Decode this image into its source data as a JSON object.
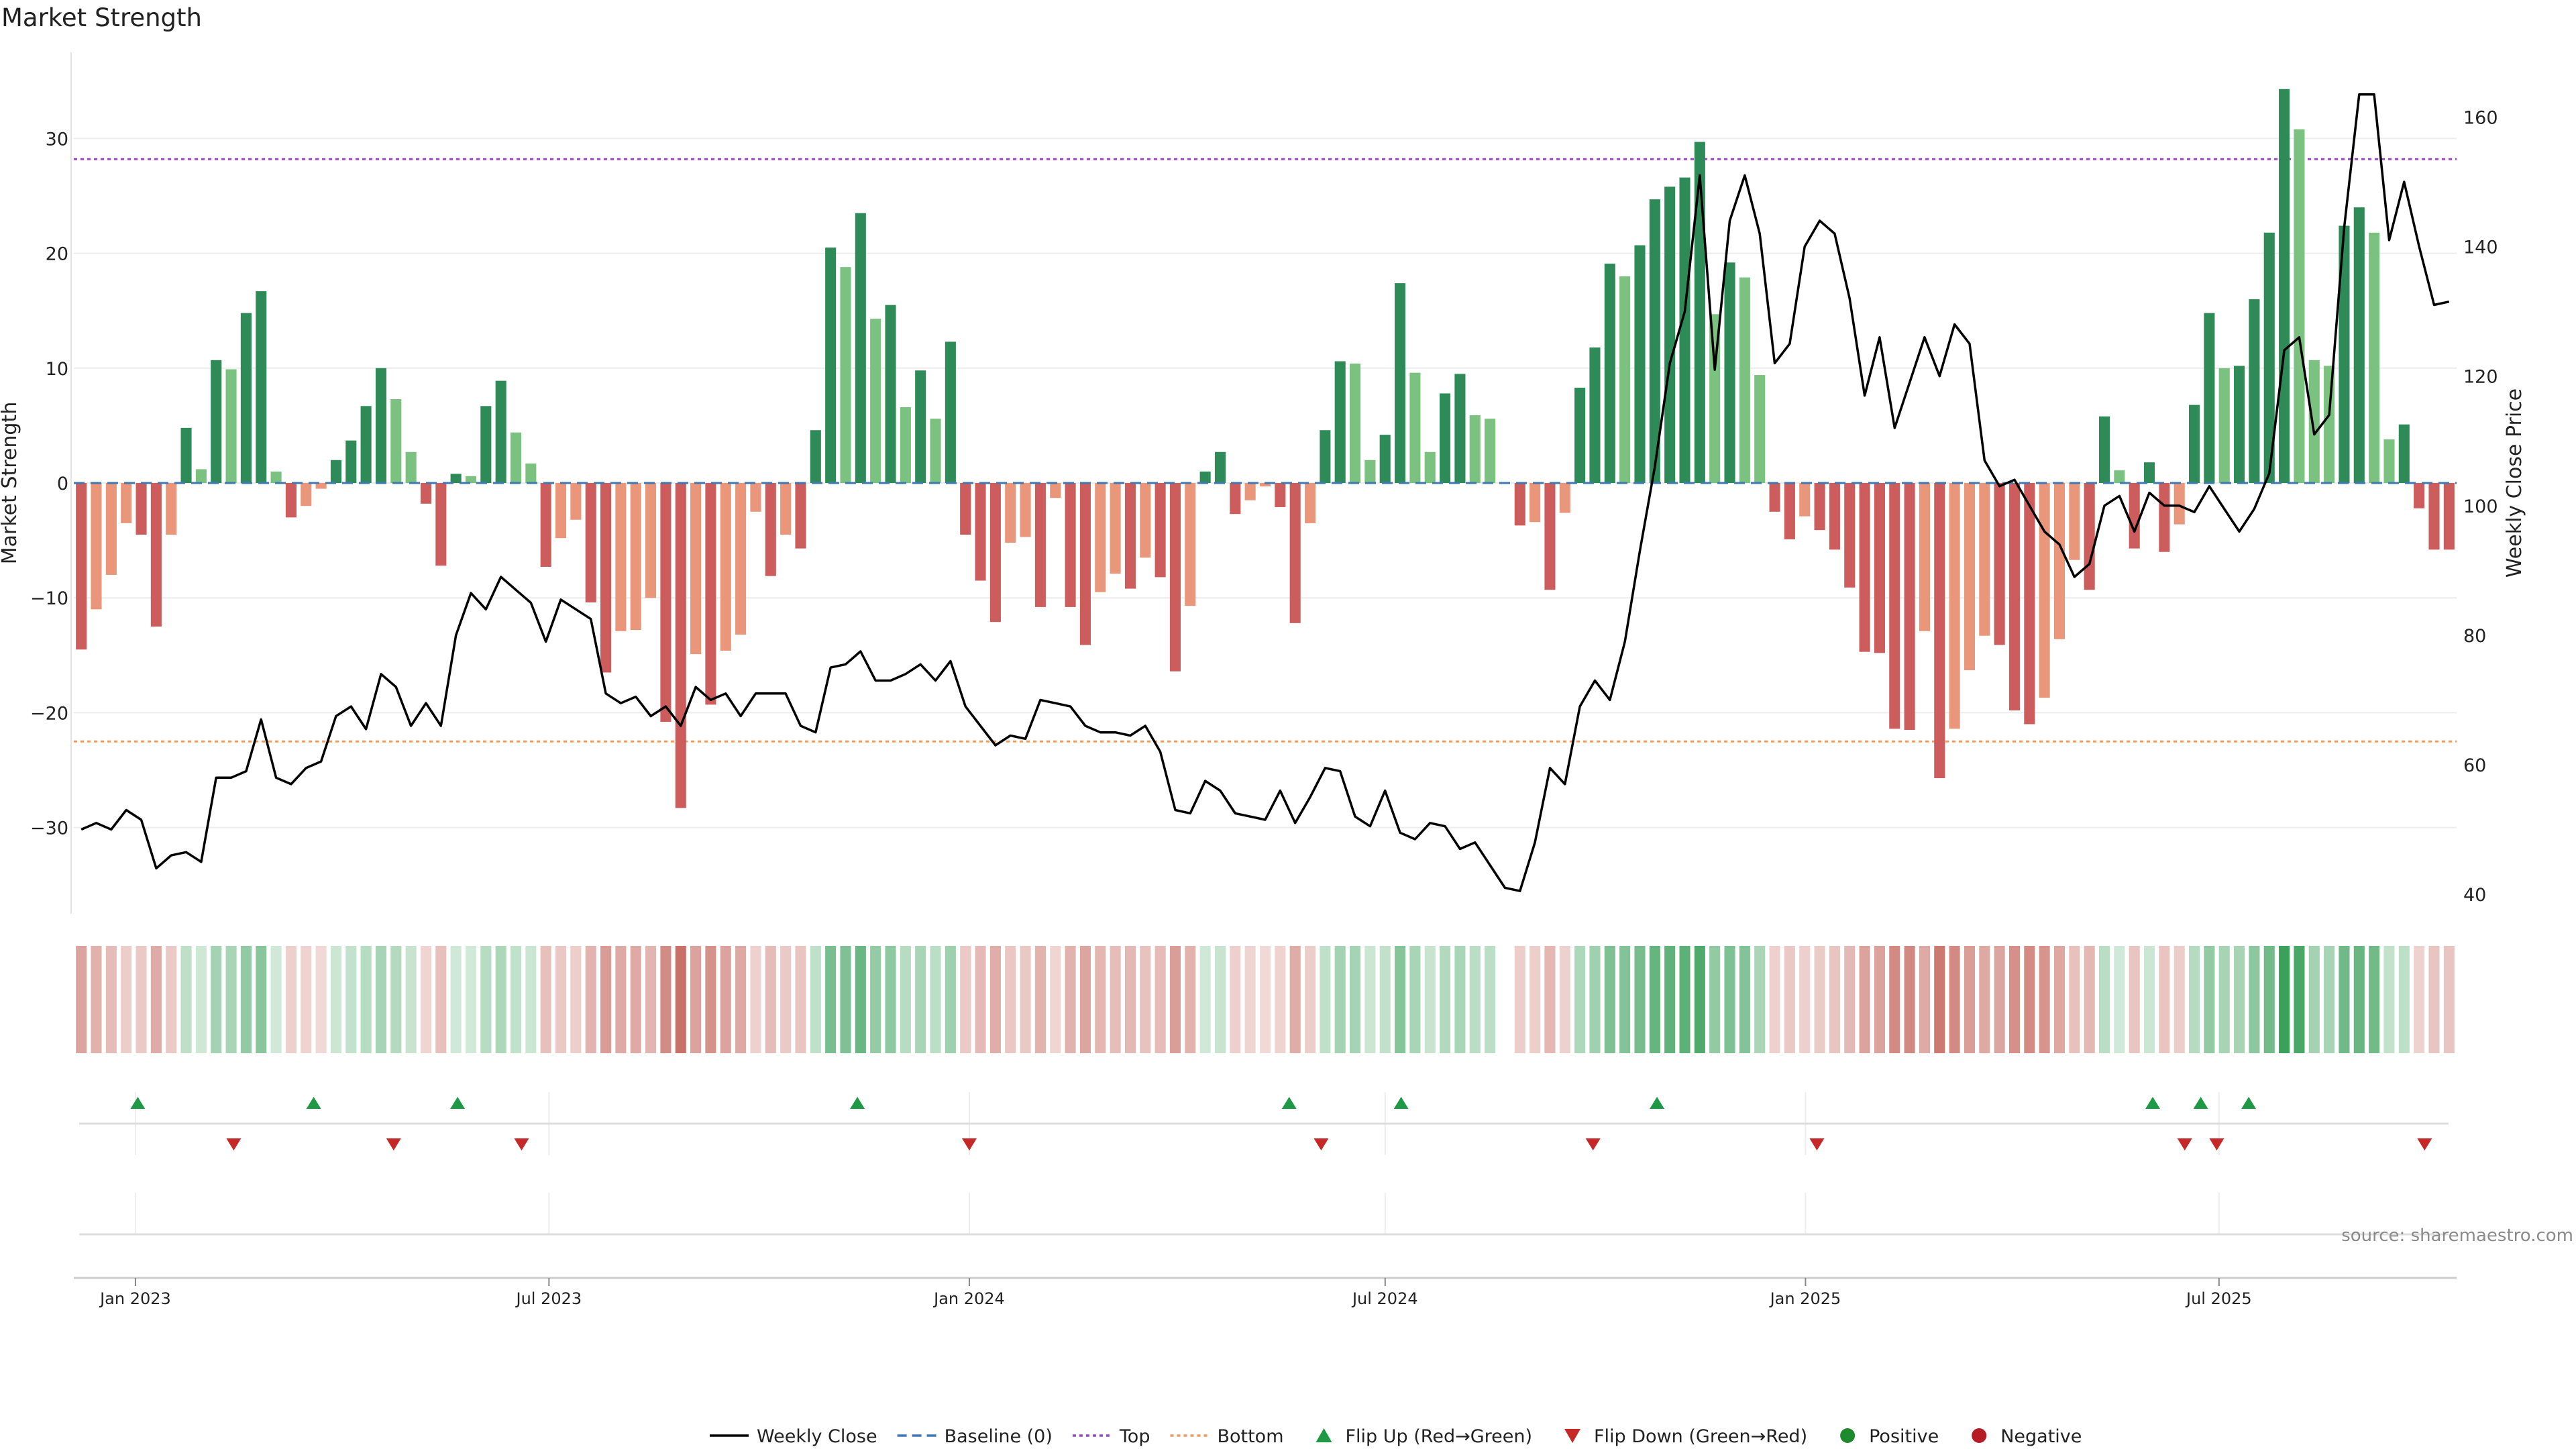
{
  "chart_data": {
    "type": "bar",
    "title": "Market Strength",
    "ylabel_left": "Market Strength",
    "ylabel_right": "Weekly Close Price",
    "source": "source: sharemaestro.com",
    "ylim_left": [
      -37.5,
      37.5
    ],
    "ylim_right": [
      37,
      170
    ],
    "yticks_left": [
      "30",
      "20",
      "10",
      "0",
      "−10",
      "−20",
      "−30"
    ],
    "yticks_right": [
      "160",
      "140",
      "120",
      "100",
      "80",
      "60",
      "40"
    ],
    "x_start": "2022-12-05",
    "x_end": "2025-10-13",
    "x_ticks": [
      {
        "date": "2023-01-01",
        "label": "Jan 2023"
      },
      {
        "date": "2023-07-01",
        "label": "Jul 2023"
      },
      {
        "date": "2024-01-01",
        "label": "Jan 2024"
      },
      {
        "date": "2024-07-01",
        "label": "Jul 2024"
      },
      {
        "date": "2025-01-01",
        "label": "Jan 2025"
      },
      {
        "date": "2025-07-01",
        "label": "Jul 2025"
      }
    ],
    "top_line": 28.2,
    "bottom_line": -22.5,
    "strength": [
      -14.5,
      -11,
      -8,
      -3.5,
      -4.5,
      -12.5,
      -4.5,
      4.8,
      1.2,
      10.7,
      9.9,
      14.8,
      16.7,
      1,
      -3,
      -2,
      -0.5,
      2,
      3.7,
      6.7,
      10,
      7.3,
      2.7,
      -1.8,
      -7.2,
      0.8,
      0.6,
      6.7,
      8.9,
      4.4,
      1.7,
      -7.3,
      -4.8,
      -3.2,
      -10.4,
      -16.5,
      -12.9,
      -12.8,
      -10,
      -20.8,
      -28.3,
      -14.9,
      -19.3,
      -14.6,
      -13.2,
      -2.5,
      -8.1,
      -4.5,
      -5.7,
      4.6,
      20.5,
      18.8,
      23.5,
      14.3,
      15.5,
      6.6,
      9.8,
      5.6,
      12.3,
      -4.5,
      -8.5,
      -12.1,
      -5.2,
      -4.7,
      -10.8,
      -1.3,
      -10.8,
      -14.1,
      -9.5,
      -7.9,
      -9.2,
      -6.5,
      -8.2,
      -16.4,
      -10.7,
      1,
      2.7,
      -2.7,
      -1.5,
      -0.3,
      -2.1,
      -12.2,
      -3.5,
      4.6,
      10.6,
      10.4,
      2,
      4.2,
      17.4,
      9.6,
      2.7,
      7.8,
      9.5,
      5.9,
      5.6,
      0,
      -3.7,
      -3.4,
      -9.3,
      -2.6,
      8.3,
      11.8,
      19.1,
      18,
      20.7,
      24.7,
      25.8,
      26.6,
      29.7,
      14.7,
      19.2,
      17.9,
      9.4,
      -2.5,
      -4.9,
      -2.9,
      -4.1,
      -5.8,
      -9.1,
      -14.7,
      -14.8,
      -21.4,
      -21.5,
      -12.9,
      -25.7,
      -21.4,
      -16.3,
      -13.3,
      -14.1,
      -19.8,
      -21,
      -18.7,
      -13.6,
      -6.7,
      -9.3,
      5.8,
      1.1,
      -5.7,
      1.8,
      -6,
      -3.6,
      6.8,
      14.8,
      10,
      10.2,
      16,
      21.8,
      34.3,
      30.8,
      10.7,
      10.2,
      22.4,
      24,
      21.8,
      3.8,
      5.1,
      -2.2,
      -5.8,
      -5.8
    ],
    "weekly_close": [
      50,
      51,
      50,
      53,
      51.5,
      44,
      46,
      46.5,
      45,
      58,
      58,
      59,
      67,
      58,
      57,
      59.5,
      60.5,
      67.5,
      69,
      65.5,
      74,
      72,
      66,
      69.5,
      66,
      80,
      86.5,
      84,
      89,
      87,
      85,
      79,
      85.5,
      84,
      82.5,
      71,
      69.5,
      70.5,
      67.5,
      69,
      66,
      72,
      70,
      71,
      67.5,
      71,
      71,
      71,
      66,
      65,
      75,
      75.5,
      77.5,
      73,
      73,
      74,
      75.5,
      73,
      76,
      69,
      66,
      63,
      64.5,
      64,
      70,
      69.5,
      69,
      66,
      65,
      65,
      64.5,
      66,
      62,
      53,
      52.5,
      57.5,
      56,
      52.5,
      52,
      51.5,
      56,
      51,
      55,
      59.5,
      59,
      52,
      50.5,
      56,
      49.5,
      48.5,
      51,
      50.5,
      47,
      48,
      44.5,
      41,
      40.5,
      48,
      59.5,
      57,
      69,
      73,
      70,
      79,
      93,
      106,
      122,
      130,
      151,
      121,
      144,
      151,
      142,
      122,
      125,
      140,
      144,
      142,
      132,
      117,
      126,
      112,
      119,
      126,
      120,
      128,
      125,
      107,
      103,
      104,
      100,
      96,
      94,
      89,
      91,
      100,
      101.5,
      96,
      102,
      100,
      100,
      99,
      103,
      99.5,
      96,
      99.5,
      105,
      124,
      126,
      111,
      114,
      143,
      163.5,
      163.5,
      141,
      150,
      140,
      131,
      131.5
    ],
    "flip_up_dates": [
      "2023-01-02",
      "2023-03-20",
      "2023-05-22",
      "2023-11-13",
      "2024-05-20",
      "2024-07-08",
      "2024-10-28",
      "2025-06-02",
      "2025-06-23",
      "2025-07-14"
    ],
    "flip_down_dates": [
      "2023-02-13",
      "2023-04-24",
      "2023-06-19",
      "2024-01-01",
      "2024-06-03",
      "2024-09-30",
      "2025-01-06",
      "2025-06-16",
      "2025-06-30",
      "2025-09-29"
    ],
    "legend": [
      {
        "label": "Weekly Close",
        "kind": "line-solid",
        "color": "#000000"
      },
      {
        "label": "Baseline (0)",
        "kind": "line-dashed",
        "color": "#3f79b5"
      },
      {
        "label": "Top",
        "kind": "line-dotted",
        "color": "#9b45c7"
      },
      {
        "label": "Bottom",
        "kind": "line-dotted",
        "color": "#ee9b61"
      },
      {
        "label": "Flip Up (Red→Green)",
        "kind": "triangle-up",
        "color": "#1e9a46"
      },
      {
        "label": "Flip Down (Green→Red)",
        "kind": "triangle-down",
        "color": "#c62828"
      },
      {
        "label": "Positive",
        "kind": "circle",
        "color": "#1e8a2e"
      },
      {
        "label": "Negative",
        "kind": "circle",
        "color": "#b71c25"
      }
    ],
    "colors": {
      "pos_dark": "#2e8b57",
      "pos_light": "#7bc17f",
      "neg_dark": "#cd5c5c",
      "neg_light": "#e9967a",
      "top": "#9b45c7",
      "bottom": "#ee9b61",
      "baseline": "#3f79b5",
      "close_line": "#000000",
      "flip_up": "#1e9a46",
      "flip_down": "#c62828"
    }
  }
}
